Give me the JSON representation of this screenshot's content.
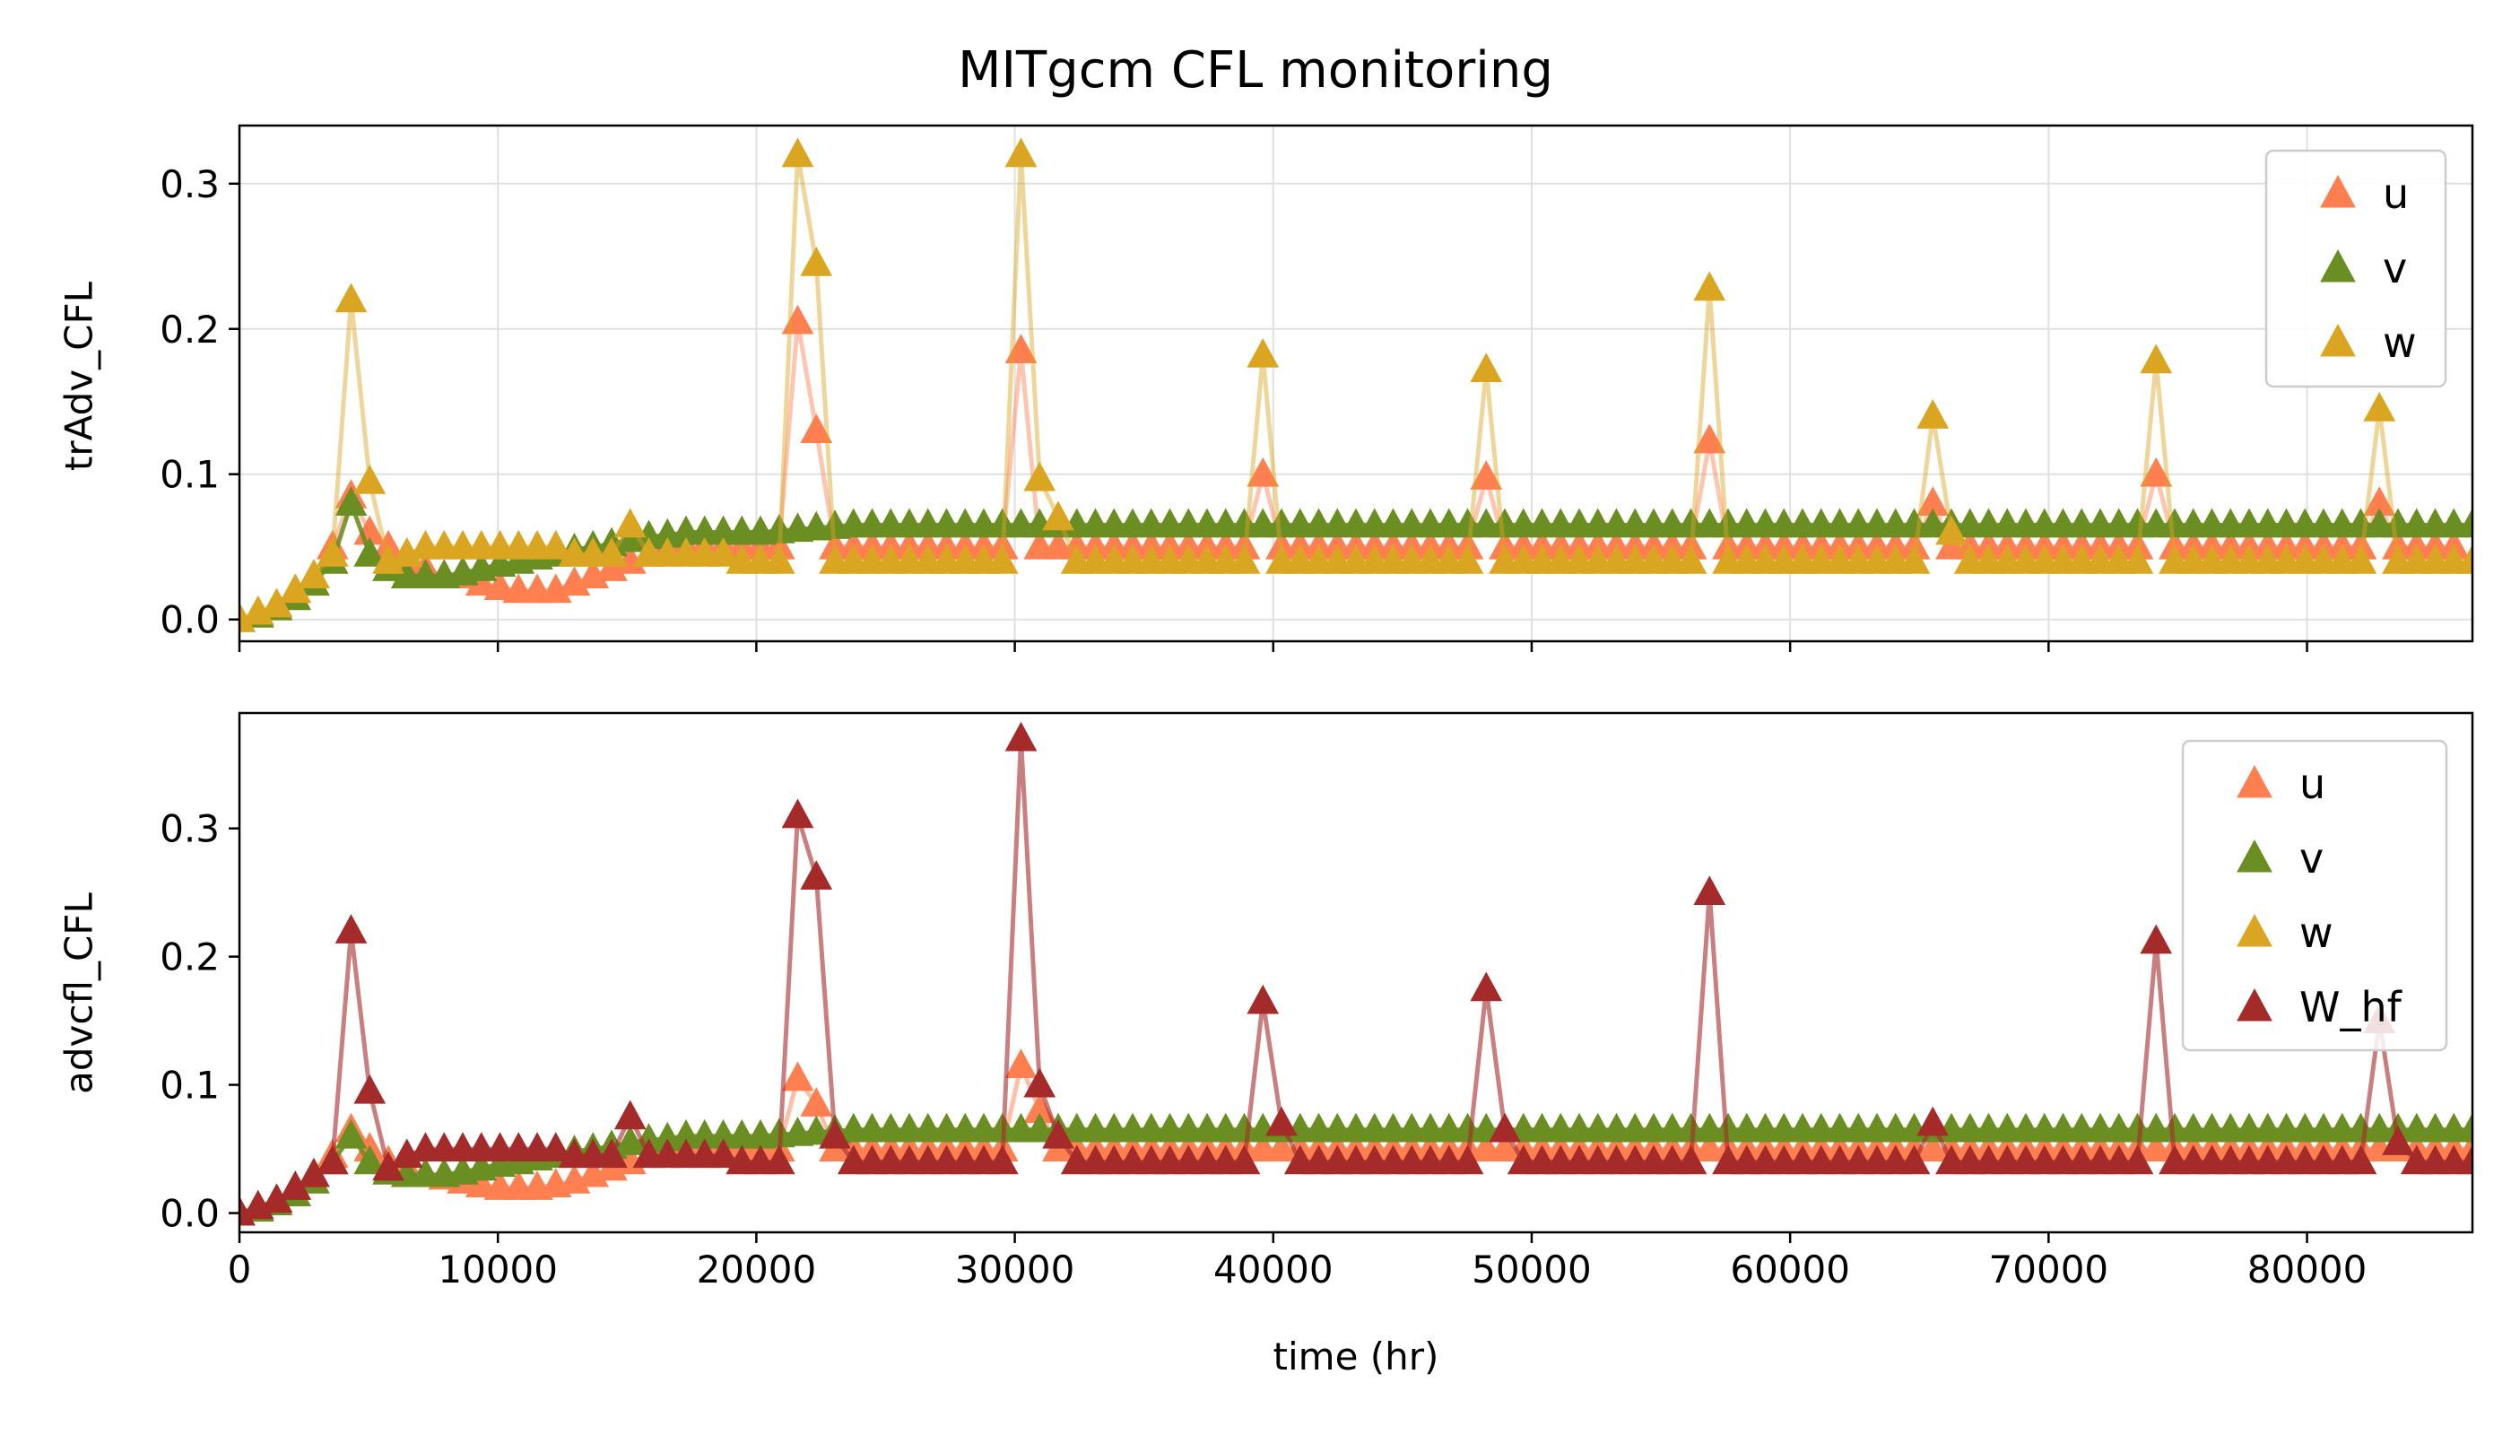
{
  "title": "MITgcm CFL monitoring",
  "xlabel": "time (hr)",
  "chart_data": [
    {
      "type": "line",
      "panel": "top",
      "ylabel": "trAdv_CFL",
      "xlim": [
        0,
        86400
      ],
      "ylim": [
        -0.015,
        0.34
      ],
      "xticks": [
        0,
        10000,
        20000,
        30000,
        40000,
        50000,
        60000,
        70000,
        80000
      ],
      "xticklabels": [],
      "yticks": [
        0.0,
        0.1,
        0.2,
        0.3
      ],
      "yticklabels": [
        "0.0",
        "0.1",
        "0.2",
        "0.3"
      ],
      "grid": true,
      "legend": "top-right",
      "x_start": 0,
      "x_step": 720,
      "series": [
        {
          "name": "u",
          "color": "#ff7f50",
          "marker": "triangle",
          "line_alpha": 0.45,
          "values": [
            0.0,
            0.004,
            0.01,
            0.02,
            0.03,
            0.05,
            0.085,
            0.06,
            0.05,
            0.04,
            0.035,
            0.03,
            0.03,
            0.025,
            0.022,
            0.02,
            0.02,
            0.02,
            0.025,
            0.03,
            0.035,
            0.04,
            0.045,
            0.05,
            0.05,
            0.05,
            0.05,
            0.05,
            0.05,
            0.05,
            0.05,
            0.05,
            0.05,
            0.05,
            0.05,
            0.05,
            0.05,
            0.05,
            0.05,
            0.05,
            0.05,
            0.05,
            0.05,
            0.05,
            0.05,
            0.05,
            0.05,
            0.05,
            0.05,
            0.05,
            0.05,
            0.05,
            0.05,
            0.05,
            0.05,
            0.05,
            0.05,
            0.05,
            0.05,
            0.05,
            0.05,
            0.05,
            0.05,
            0.05,
            0.05,
            0.05,
            0.05,
            0.05,
            0.05,
            0.05,
            0.05,
            0.05,
            0.05,
            0.05,
            0.05,
            0.05,
            0.05,
            0.05,
            0.05,
            0.05,
            0.05,
            0.05,
            0.05,
            0.05,
            0.05,
            0.05,
            0.05,
            0.05,
            0.05,
            0.05,
            0.05,
            0.05,
            0.05,
            0.05,
            0.05,
            0.05,
            0.05,
            0.05,
            0.05,
            0.05,
            0.05,
            0.05,
            0.05,
            0.05,
            0.05,
            0.05,
            0.05,
            0.05,
            0.05,
            0.05,
            0.05,
            0.05,
            0.05,
            0.05,
            0.05,
            0.05,
            0.05,
            0.05,
            0.05,
            0.05
          ],
          "peaks": [
            [
              21600,
              0.205
            ],
            [
              22320,
              0.13
            ],
            [
              30240,
              0.185
            ],
            [
              39600,
              0.1
            ],
            [
              48240,
              0.098
            ],
            [
              56880,
              0.123
            ],
            [
              65520,
              0.08
            ],
            [
              74160,
              0.1
            ],
            [
              82800,
              0.08
            ]
          ]
        },
        {
          "name": "v",
          "color": "#6b8e23",
          "marker": "triangle",
          "line_alpha": 0.9,
          "values": [
            0.0,
            0.003,
            0.008,
            0.015,
            0.025,
            0.04,
            0.08,
            0.045,
            0.035,
            0.03,
            0.03,
            0.03,
            0.032,
            0.035,
            0.038,
            0.04,
            0.043,
            0.045,
            0.048,
            0.05,
            0.052,
            0.055,
            0.057,
            0.058,
            0.06,
            0.06,
            0.06,
            0.06,
            0.06,
            0.061,
            0.062,
            0.063,
            0.064,
            0.065,
            0.065,
            0.065,
            0.065,
            0.065,
            0.065,
            0.065,
            0.065,
            0.065,
            0.065,
            0.065,
            0.065,
            0.065,
            0.065,
            0.065,
            0.065,
            0.065,
            0.065,
            0.065,
            0.065,
            0.065,
            0.065,
            0.065,
            0.065,
            0.065,
            0.065,
            0.065,
            0.065,
            0.065,
            0.065,
            0.065,
            0.065,
            0.065,
            0.065,
            0.065,
            0.065,
            0.065,
            0.065,
            0.065,
            0.065,
            0.065,
            0.065,
            0.065,
            0.065,
            0.065,
            0.065,
            0.065,
            0.065,
            0.065,
            0.065,
            0.065,
            0.065,
            0.065,
            0.065,
            0.065,
            0.065,
            0.065,
            0.065,
            0.065,
            0.065,
            0.065,
            0.065,
            0.065,
            0.065,
            0.065,
            0.065,
            0.065,
            0.065,
            0.065,
            0.065,
            0.065,
            0.065,
            0.065,
            0.065,
            0.065,
            0.065,
            0.065,
            0.065,
            0.065,
            0.065,
            0.065,
            0.065,
            0.065,
            0.065,
            0.065,
            0.065,
            0.065,
            0.065
          ],
          "peaks": []
        },
        {
          "name": "w",
          "color": "#daa520",
          "marker": "triangle",
          "line_alpha": 0.45,
          "values": [
            0.0,
            0.005,
            0.01,
            0.02,
            0.03,
            0.045,
            0.22,
            0.095,
            0.04,
            0.045,
            0.05,
            0.05,
            0.05,
            0.05,
            0.05,
            0.05,
            0.05,
            0.05,
            0.045,
            0.045,
            0.045,
            0.065,
            0.045,
            0.045,
            0.045,
            0.045,
            0.045,
            0.04,
            0.04,
            0.04,
            0.04,
            0.04,
            0.04,
            0.04,
            0.04,
            0.04,
            0.04,
            0.04,
            0.04,
            0.04,
            0.04,
            0.04,
            0.04,
            0.04,
            0.04,
            0.04,
            0.04,
            0.04,
            0.04,
            0.04,
            0.04,
            0.04,
            0.04,
            0.04,
            0.04,
            0.04,
            0.04,
            0.04,
            0.04,
            0.04,
            0.04,
            0.04,
            0.04,
            0.04,
            0.04,
            0.04,
            0.04,
            0.04,
            0.04,
            0.04,
            0.04,
            0.04,
            0.04,
            0.04,
            0.04,
            0.04,
            0.04,
            0.04,
            0.04,
            0.04,
            0.04,
            0.04,
            0.04,
            0.04,
            0.04,
            0.04,
            0.04,
            0.04,
            0.04,
            0.04,
            0.04,
            0.04,
            0.04,
            0.04,
            0.04,
            0.04,
            0.04,
            0.04,
            0.04,
            0.04,
            0.04,
            0.04,
            0.04,
            0.04,
            0.04,
            0.04,
            0.04,
            0.04,
            0.04,
            0.04,
            0.04,
            0.04,
            0.04,
            0.04,
            0.04,
            0.04,
            0.04,
            0.04,
            0.04,
            0.04,
            0.04
          ],
          "peaks": [
            [
              21600,
              0.32
            ],
            [
              22320,
              0.245
            ],
            [
              30240,
              0.32
            ],
            [
              30960,
              0.097
            ],
            [
              31680,
              0.07
            ],
            [
              39600,
              0.182
            ],
            [
              48240,
              0.172
            ],
            [
              56880,
              0.228
            ],
            [
              65520,
              0.14
            ],
            [
              66240,
              0.06
            ],
            [
              74160,
              0.178
            ],
            [
              82800,
              0.145
            ]
          ]
        }
      ]
    },
    {
      "type": "line",
      "panel": "bottom",
      "ylabel": "advcfl_CFL",
      "xlim": [
        0,
        86400
      ],
      "ylim": [
        -0.015,
        0.39
      ],
      "xticks": [
        0,
        10000,
        20000,
        30000,
        40000,
        50000,
        60000,
        70000,
        80000
      ],
      "xticklabels": [
        "0",
        "10000",
        "20000",
        "30000",
        "40000",
        "50000",
        "60000",
        "70000",
        "80000"
      ],
      "yticks": [
        0.0,
        0.1,
        0.2,
        0.3
      ],
      "yticklabels": [
        "0.0",
        "0.1",
        "0.2",
        "0.3"
      ],
      "grid": false,
      "legend": "top-right",
      "x_start": 0,
      "x_step": 720,
      "series": [
        {
          "name": "u",
          "color": "#ff7f50",
          "marker": "triangle",
          "line_alpha": 0.5,
          "values": [
            0.0,
            0.004,
            0.01,
            0.02,
            0.03,
            0.045,
            0.065,
            0.05,
            0.04,
            0.035,
            0.03,
            0.028,
            0.025,
            0.022,
            0.02,
            0.02,
            0.02,
            0.022,
            0.025,
            0.03,
            0.035,
            0.04,
            0.045,
            0.05,
            0.05,
            0.05,
            0.05,
            0.05,
            0.05,
            0.05,
            0.05,
            0.05,
            0.05,
            0.05,
            0.05,
            0.05,
            0.05,
            0.05,
            0.05,
            0.05,
            0.05,
            0.05,
            0.05,
            0.05,
            0.05,
            0.05,
            0.05,
            0.05,
            0.05,
            0.05,
            0.05,
            0.05,
            0.05,
            0.05,
            0.05,
            0.05,
            0.05,
            0.05,
            0.05,
            0.05,
            0.05,
            0.05,
            0.05,
            0.05,
            0.05,
            0.05,
            0.05,
            0.05,
            0.05,
            0.05,
            0.05,
            0.05,
            0.05,
            0.05,
            0.05,
            0.05,
            0.05,
            0.05,
            0.05,
            0.05,
            0.05,
            0.05,
            0.05,
            0.05,
            0.05,
            0.05,
            0.05,
            0.05,
            0.05,
            0.05,
            0.05,
            0.05,
            0.05,
            0.05,
            0.05,
            0.05,
            0.05,
            0.05,
            0.05,
            0.05,
            0.05,
            0.05,
            0.05,
            0.05,
            0.05,
            0.05,
            0.05,
            0.05,
            0.05,
            0.05,
            0.05,
            0.05,
            0.05,
            0.05,
            0.05,
            0.05,
            0.05,
            0.05,
            0.05,
            0.05,
            0.05
          ],
          "peaks": [
            [
              21600,
              0.105
            ],
            [
              22320,
              0.085
            ],
            [
              30240,
              0.115
            ],
            [
              30960,
              0.08
            ]
          ]
        },
        {
          "name": "v",
          "color": "#6b8e23",
          "marker": "triangle",
          "line_alpha": 0.9,
          "values": [
            0.0,
            0.003,
            0.008,
            0.015,
            0.025,
            0.04,
            0.06,
            0.04,
            0.032,
            0.03,
            0.03,
            0.03,
            0.032,
            0.035,
            0.038,
            0.04,
            0.043,
            0.045,
            0.048,
            0.05,
            0.052,
            0.055,
            0.057,
            0.058,
            0.06,
            0.06,
            0.06,
            0.06,
            0.06,
            0.061,
            0.062,
            0.063,
            0.064,
            0.065,
            0.065,
            0.065,
            0.065,
            0.065,
            0.065,
            0.065,
            0.065,
            0.065,
            0.065,
            0.065,
            0.065,
            0.065,
            0.065,
            0.065,
            0.065,
            0.065,
            0.065,
            0.065,
            0.065,
            0.065,
            0.065,
            0.065,
            0.065,
            0.065,
            0.065,
            0.065,
            0.065,
            0.065,
            0.065,
            0.065,
            0.065,
            0.065,
            0.065,
            0.065,
            0.065,
            0.065,
            0.065,
            0.065,
            0.065,
            0.065,
            0.065,
            0.065,
            0.065,
            0.065,
            0.065,
            0.065,
            0.065,
            0.065,
            0.065,
            0.065,
            0.065,
            0.065,
            0.065,
            0.065,
            0.065,
            0.065,
            0.065,
            0.065,
            0.065,
            0.065,
            0.065,
            0.065,
            0.065,
            0.065,
            0.065,
            0.065,
            0.065,
            0.065,
            0.065,
            0.065,
            0.065,
            0.065,
            0.065,
            0.065,
            0.065,
            0.065,
            0.065,
            0.065,
            0.065,
            0.065,
            0.065,
            0.065,
            0.065,
            0.065,
            0.065,
            0.065,
            0.065
          ],
          "peaks": []
        },
        {
          "name": "w",
          "color": "#daa520",
          "marker": "triangle",
          "line_alpha": 0.0,
          "values": [],
          "peaks": []
        },
        {
          "name": "W_hf",
          "color": "#a52a2a",
          "marker": "triangle",
          "line_alpha": 0.6,
          "values": [
            0.0,
            0.005,
            0.01,
            0.02,
            0.03,
            0.04,
            0.22,
            0.095,
            0.035,
            0.045,
            0.05,
            0.05,
            0.05,
            0.05,
            0.05,
            0.05,
            0.05,
            0.05,
            0.045,
            0.045,
            0.045,
            0.075,
            0.045,
            0.045,
            0.045,
            0.045,
            0.045,
            0.04,
            0.04,
            0.04,
            0.04,
            0.04,
            0.04,
            0.04,
            0.04,
            0.04,
            0.04,
            0.04,
            0.04,
            0.04,
            0.04,
            0.04,
            0.04,
            0.04,
            0.04,
            0.04,
            0.04,
            0.04,
            0.04,
            0.04,
            0.04,
            0.04,
            0.04,
            0.04,
            0.04,
            0.04,
            0.04,
            0.04,
            0.04,
            0.04,
            0.04,
            0.04,
            0.04,
            0.04,
            0.04,
            0.04,
            0.04,
            0.04,
            0.04,
            0.04,
            0.04,
            0.04,
            0.04,
            0.04,
            0.04,
            0.04,
            0.04,
            0.04,
            0.04,
            0.04,
            0.04,
            0.04,
            0.04,
            0.04,
            0.04,
            0.04,
            0.04,
            0.04,
            0.04,
            0.04,
            0.04,
            0.04,
            0.04,
            0.04,
            0.04,
            0.04,
            0.04,
            0.04,
            0.04,
            0.04,
            0.04,
            0.04,
            0.04,
            0.04,
            0.04,
            0.04,
            0.04,
            0.04,
            0.04,
            0.04,
            0.04,
            0.04,
            0.04,
            0.04,
            0.04,
            0.04,
            0.04,
            0.04,
            0.04,
            0.04,
            0.04
          ],
          "peaks": [
            [
              21600,
              0.31
            ],
            [
              22320,
              0.262
            ],
            [
              23040,
              0.06
            ],
            [
              30240,
              0.37
            ],
            [
              30960,
              0.1
            ],
            [
              31680,
              0.06
            ],
            [
              39600,
              0.165
            ],
            [
              40320,
              0.07
            ],
            [
              48240,
              0.175
            ],
            [
              48960,
              0.065
            ],
            [
              56880,
              0.25
            ],
            [
              65520,
              0.07
            ],
            [
              74160,
              0.212
            ],
            [
              82800,
              0.15
            ],
            [
              83520,
              0.055
            ]
          ]
        }
      ]
    }
  ]
}
